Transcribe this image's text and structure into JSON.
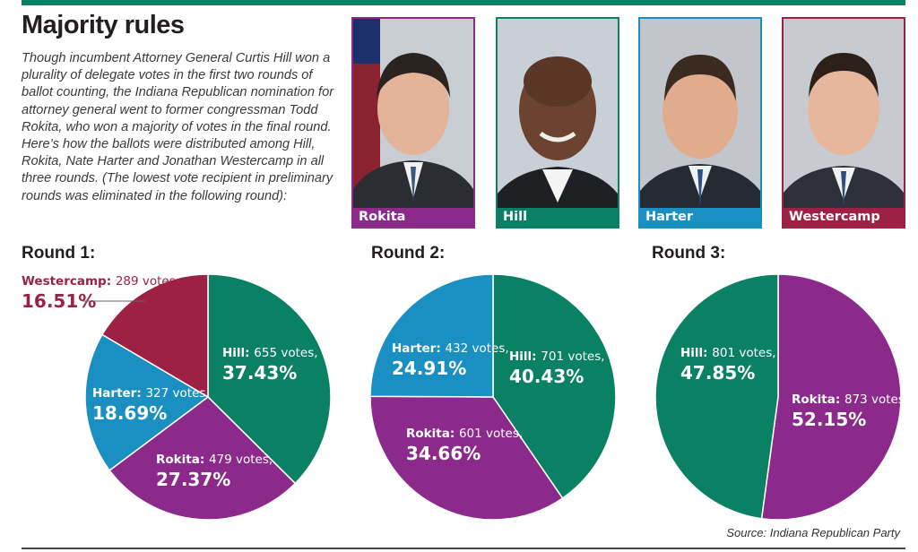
{
  "headline": "Majority rules",
  "intro": "Though incumbent Attorney General Curtis Hill won a plurality of delegate votes in the first two rounds of ballot counting, the Indiana Republican nomination for attorney general went to former congressman Todd Rokita, who won a majority of votes in the final round. Here’s how the ballots were distributed among Hill, Rokita, Nate Harter and Jonathan Westercamp in all three rounds. (The lowest vote recipient in preliminary rounds was eliminated in the following round):",
  "candidates": [
    {
      "name": "Rokita",
      "color": "#8c2a8c"
    },
    {
      "name": "Hill",
      "color": "#0a8064"
    },
    {
      "name": "Harter",
      "color": "#1a8fc1"
    },
    {
      "name": "Westercamp",
      "color": "#9c2145"
    }
  ],
  "chart_data": [
    {
      "type": "pie",
      "title": "Round 1:",
      "slices": [
        {
          "name": "Hill",
          "votes": 655,
          "percent": 37.43,
          "votes_label": "655 votes,",
          "pct_label": "37.43%"
        },
        {
          "name": "Rokita",
          "votes": 479,
          "percent": 27.37,
          "votes_label": "479 votes,",
          "pct_label": "27.37%"
        },
        {
          "name": "Harter",
          "votes": 327,
          "percent": 18.69,
          "votes_label": "327 votes,",
          "pct_label": "18.69%"
        },
        {
          "name": "Westercamp",
          "votes": 289,
          "percent": 16.51,
          "votes_label": "289 votes",
          "pct_label": "16.51%"
        }
      ]
    },
    {
      "type": "pie",
      "title": "Round 2:",
      "slices": [
        {
          "name": "Hill",
          "votes": 701,
          "percent": 40.43,
          "votes_label": "701 votes,",
          "pct_label": "40.43%"
        },
        {
          "name": "Rokita",
          "votes": 601,
          "percent": 34.66,
          "votes_label": "601 votes,",
          "pct_label": "34.66%"
        },
        {
          "name": "Harter",
          "votes": 432,
          "percent": 24.91,
          "votes_label": "432 votes,",
          "pct_label": "24.91%"
        }
      ]
    },
    {
      "type": "pie",
      "title": "Round 3:",
      "slices": [
        {
          "name": "Rokita",
          "votes": 873,
          "percent": 52.15,
          "votes_label": "873 votes,",
          "pct_label": "52.15%"
        },
        {
          "name": "Hill",
          "votes": 801,
          "percent": 47.85,
          "votes_label": "801 votes,",
          "pct_label": "47.85%"
        }
      ]
    }
  ],
  "source": "Source: Indiana Republican Party"
}
